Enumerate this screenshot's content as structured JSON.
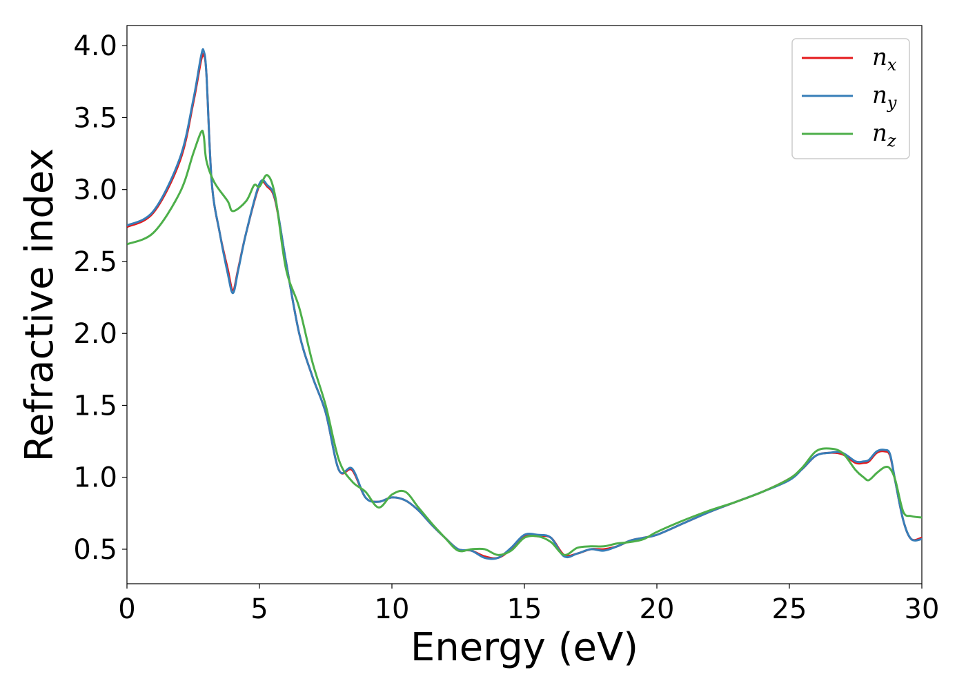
{
  "chart_data": {
    "type": "line",
    "xlabel": "Energy (eV)",
    "ylabel": "Refractive index",
    "xlim": [
      0,
      30
    ],
    "ylim": [
      0.26,
      4.14
    ],
    "xticks": [
      0,
      5,
      10,
      15,
      20,
      25,
      30
    ],
    "xtick_labels": [
      "0",
      "5",
      "10",
      "15",
      "20",
      "25",
      "30"
    ],
    "yticks": [
      0.5,
      1.0,
      1.5,
      2.0,
      2.5,
      3.0,
      3.5,
      4.0
    ],
    "ytick_labels": [
      "0.5",
      "1.0",
      "1.5",
      "2.0",
      "2.5",
      "3.0",
      "3.5",
      "4.0"
    ],
    "grid": false,
    "legend": {
      "position": "top-right"
    },
    "colors": {
      "n_x": "#e41a1c",
      "n_y": "#377eb8",
      "n_z": "#4daf4a"
    },
    "series": [
      {
        "name": "n_x",
        "base": "n",
        "sub": "x",
        "color": "#e41a1c",
        "x": [
          0,
          1,
          2,
          2.5,
          2.8,
          2.9,
          3.0,
          3.2,
          3.5,
          3.8,
          4.0,
          4.2,
          4.5,
          5.0,
          5.3,
          5.6,
          6.0,
          6.5,
          7.0,
          7.5,
          8.0,
          8.5,
          9.0,
          9.5,
          10.0,
          10.5,
          11.0,
          11.5,
          12.0,
          12.5,
          13.0,
          13.5,
          14.0,
          14.5,
          15.0,
          15.5,
          16.0,
          16.5,
          17.0,
          17.5,
          18.0,
          18.5,
          19.0,
          19.5,
          20.0,
          21.0,
          22.0,
          23.0,
          24.0,
          25.0,
          25.5,
          26.0,
          26.5,
          27.0,
          27.5,
          27.8,
          28.0,
          28.3,
          28.6,
          28.8,
          29.0,
          29.3,
          29.6,
          30.0
        ],
        "y": [
          2.74,
          2.84,
          3.2,
          3.6,
          3.9,
          3.93,
          3.8,
          3.05,
          2.7,
          2.45,
          2.3,
          2.45,
          2.7,
          3.03,
          3.02,
          2.92,
          2.5,
          2.0,
          1.7,
          1.45,
          1.05,
          1.05,
          0.86,
          0.83,
          0.86,
          0.84,
          0.77,
          0.67,
          0.58,
          0.5,
          0.49,
          0.45,
          0.44,
          0.5,
          0.59,
          0.59,
          0.58,
          0.46,
          0.47,
          0.5,
          0.5,
          0.52,
          0.56,
          0.58,
          0.6,
          0.68,
          0.76,
          0.83,
          0.9,
          0.99,
          1.06,
          1.15,
          1.17,
          1.16,
          1.1,
          1.1,
          1.11,
          1.17,
          1.18,
          1.15,
          0.97,
          0.7,
          0.57,
          0.58
        ]
      },
      {
        "name": "n_y",
        "base": "n",
        "sub": "y",
        "color": "#377eb8",
        "x": [
          0,
          1,
          2,
          2.5,
          2.8,
          2.9,
          3.0,
          3.2,
          3.5,
          3.8,
          4.0,
          4.2,
          4.5,
          5.0,
          5.3,
          5.6,
          6.0,
          6.5,
          7.0,
          7.5,
          8.0,
          8.5,
          9.0,
          9.5,
          10.0,
          10.5,
          11.0,
          11.5,
          12.0,
          12.5,
          13.0,
          13.5,
          14.0,
          14.5,
          15.0,
          15.5,
          16.0,
          16.5,
          17.0,
          17.5,
          18.0,
          18.5,
          19.0,
          19.5,
          20.0,
          21.0,
          22.0,
          23.0,
          24.0,
          25.0,
          25.5,
          26.0,
          26.5,
          27.0,
          27.5,
          27.8,
          28.0,
          28.3,
          28.6,
          28.8,
          29.0,
          29.3,
          29.6,
          30.0
        ],
        "y": [
          2.75,
          2.85,
          3.22,
          3.62,
          3.93,
          3.96,
          3.8,
          3.05,
          2.7,
          2.42,
          2.28,
          2.44,
          2.7,
          3.04,
          3.03,
          2.93,
          2.5,
          2.0,
          1.7,
          1.45,
          1.05,
          1.06,
          0.86,
          0.83,
          0.86,
          0.84,
          0.77,
          0.67,
          0.58,
          0.5,
          0.49,
          0.44,
          0.44,
          0.51,
          0.6,
          0.6,
          0.58,
          0.45,
          0.47,
          0.5,
          0.49,
          0.52,
          0.56,
          0.58,
          0.6,
          0.68,
          0.76,
          0.83,
          0.9,
          0.98,
          1.06,
          1.15,
          1.17,
          1.17,
          1.11,
          1.11,
          1.12,
          1.18,
          1.19,
          1.16,
          0.97,
          0.7,
          0.57,
          0.57
        ]
      },
      {
        "name": "n_z",
        "base": "n",
        "sub": "z",
        "color": "#4daf4a",
        "x": [
          0,
          1,
          2,
          2.5,
          2.8,
          2.9,
          3.0,
          3.3,
          3.8,
          4.0,
          4.5,
          4.8,
          5.0,
          5.3,
          5.6,
          6.0,
          6.5,
          7.0,
          7.5,
          8.0,
          8.5,
          9.0,
          9.5,
          10.0,
          10.5,
          11.0,
          11.5,
          12.0,
          12.5,
          13.0,
          13.5,
          14.0,
          14.5,
          15.0,
          15.5,
          16.0,
          16.5,
          17.0,
          17.5,
          18.0,
          18.5,
          19.0,
          19.5,
          20.0,
          21.0,
          22.0,
          23.0,
          24.0,
          25.0,
          25.5,
          26.0,
          26.5,
          27.0,
          27.5,
          27.8,
          28.0,
          28.3,
          28.6,
          28.8,
          29.0,
          29.3,
          29.6,
          30.0
        ],
        "y": [
          2.62,
          2.7,
          2.98,
          3.25,
          3.4,
          3.37,
          3.2,
          3.05,
          2.92,
          2.85,
          2.92,
          3.03,
          3.02,
          3.1,
          2.95,
          2.45,
          2.18,
          1.8,
          1.5,
          1.12,
          0.97,
          0.9,
          0.79,
          0.88,
          0.9,
          0.79,
          0.68,
          0.58,
          0.49,
          0.5,
          0.5,
          0.46,
          0.49,
          0.58,
          0.59,
          0.55,
          0.46,
          0.51,
          0.52,
          0.52,
          0.54,
          0.55,
          0.57,
          0.62,
          0.7,
          0.77,
          0.83,
          0.9,
          0.99,
          1.07,
          1.18,
          1.2,
          1.17,
          1.05,
          1.0,
          0.98,
          1.03,
          1.07,
          1.06,
          0.98,
          0.76,
          0.73,
          0.72
        ]
      }
    ]
  }
}
